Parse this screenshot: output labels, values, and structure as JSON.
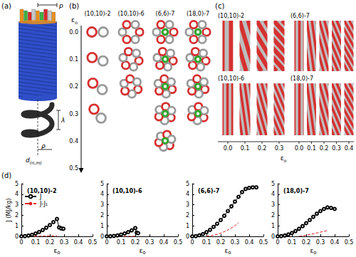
{
  "figure": {
    "panel_a": {
      "label": "(a)",
      "pitch": "p",
      "wavelength": "λ",
      "radius": "ρ",
      "diameter": {
        "symbol": "d",
        "subscript": "(n,m)"
      }
    },
    "panel_b": {
      "label": "(b)",
      "axis": {
        "symbol": "ε",
        "subscript": "o"
      },
      "ticks": [
        {
          "value": 0,
          "label": "0.0"
        },
        {
          "value": 0.1,
          "label": "0.1"
        },
        {
          "value": 0.2,
          "label": "0.2"
        },
        {
          "value": 0.3,
          "label": "0.3"
        },
        {
          "value": 0.4,
          "label": "0.4"
        },
        {
          "value": 0.5,
          "label": "0.5"
        }
      ],
      "columns": [
        {
          "name": "(10,10)-2",
          "max_strain": 0.3
        },
        {
          "name": "(10,10)-6",
          "max_strain": 0.2
        },
        {
          "name": "(6,6)-7",
          "max_strain": 0.4
        },
        {
          "name": "(18,0)-7",
          "max_strain": 0.3
        }
      ]
    },
    "panel_c": {
      "label": "(c)",
      "axis": {
        "symbol": "ε",
        "subscript": "o"
      },
      "groups": [
        {
          "structures": [
            "(10,10)-2",
            "(10,10)-6"
          ],
          "ticks": [
            {
              "value": 0,
              "label": "0.0"
            },
            {
              "value": 0.1,
              "label": "0.1"
            },
            {
              "value": 0.2,
              "label": "0.2"
            },
            {
              "value": 0.3,
              "label": "0.3"
            }
          ]
        },
        {
          "structures": [
            "(6,6)-7",
            "(18,0)-7"
          ],
          "ticks": [
            {
              "value": 0,
              "label": "0.0"
            },
            {
              "value": 0.1,
              "label": "0.1"
            },
            {
              "value": 0.2,
              "label": "0.2"
            },
            {
              "value": 0.3,
              "label": "0.3"
            },
            {
              "value": 0.4,
              "label": "0.4"
            }
          ]
        }
      ]
    },
    "panel_d": {
      "label": "(d)"
    }
  },
  "chart_data": [
    {
      "type": "line",
      "title": "(10,10)-2",
      "x_label": {
        "symbol": "ε",
        "subscript": "o"
      },
      "y_label": "J (MJ/kg)",
      "xlim": [
        0,
        0.5
      ],
      "xticks": [
        0,
        0.1,
        0.2,
        0.3,
        0.4,
        0.5
      ],
      "ylim": [
        0,
        5
      ],
      "yticks": [
        0,
        1,
        2,
        3,
        4,
        5
      ],
      "grid": false,
      "legend": "upper left",
      "series": [
        {
          "name": "J",
          "color": "#000000",
          "marker": "circle",
          "line_style": "solid",
          "x": [
            0,
            0.025,
            0.05,
            0.075,
            0.1,
            0.125,
            0.15,
            0.175,
            0.2,
            0.225,
            0.25,
            0.265,
            0.28,
            0.295
          ],
          "values": [
            0,
            0.02,
            0.07,
            0.15,
            0.27,
            0.42,
            0.6,
            0.82,
            1.07,
            1.35,
            1.65,
            0.85,
            0.75,
            0.72
          ]
        },
        {
          "name": "J-J₁",
          "color": "#e02020",
          "marker": "none",
          "line_style": "dashed",
          "x": [
            0,
            0.05,
            0.1,
            0.15,
            0.2,
            0.25
          ],
          "values": [
            0,
            0,
            0.01,
            0.02,
            0.04,
            0.06
          ]
        }
      ]
    },
    {
      "type": "line",
      "title": "(10,10)-6",
      "x_label": {
        "symbol": "ε",
        "subscript": "o"
      },
      "xlim": [
        0,
        0.5
      ],
      "xticks": [
        0,
        0.1,
        0.2,
        0.3,
        0.4,
        0.5
      ],
      "ylim": [
        0,
        5
      ],
      "yticks": [
        0,
        1,
        2,
        3,
        4,
        5
      ],
      "grid": false,
      "series": [
        {
          "name": "J",
          "color": "#000000",
          "marker": "circle",
          "line_style": "solid",
          "x": [
            0,
            0.025,
            0.05,
            0.075,
            0.1,
            0.125,
            0.15,
            0.175,
            0.2,
            0.21,
            0.22
          ],
          "values": [
            0,
            0.01,
            0.04,
            0.09,
            0.17,
            0.27,
            0.4,
            0.57,
            0.78,
            0.35,
            0.3
          ]
        },
        {
          "name": "J-J₁",
          "color": "#e02020",
          "marker": "none",
          "line_style": "dashed",
          "x": [
            0,
            0.1,
            0.2
          ],
          "values": [
            0,
            0,
            0.01
          ]
        }
      ]
    },
    {
      "type": "line",
      "title": "(6,6)-7",
      "x_label": {
        "symbol": "ε",
        "subscript": "o"
      },
      "xlim": [
        0,
        0.5
      ],
      "xticks": [
        0,
        0.1,
        0.2,
        0.3,
        0.4,
        0.5
      ],
      "ylim": [
        0,
        5
      ],
      "yticks": [
        0,
        1,
        2,
        3,
        4,
        5
      ],
      "grid": false,
      "series": [
        {
          "name": "J",
          "color": "#000000",
          "marker": "circle",
          "line_style": "solid",
          "x": [
            0,
            0.025,
            0.05,
            0.075,
            0.1,
            0.125,
            0.15,
            0.175,
            0.2,
            0.225,
            0.25,
            0.275,
            0.3,
            0.325,
            0.35,
            0.375,
            0.4,
            0.425,
            0.45
          ],
          "values": [
            0,
            0.02,
            0.1,
            0.22,
            0.4,
            0.62,
            0.9,
            1.2,
            1.55,
            1.95,
            2.4,
            2.85,
            3.3,
            3.75,
            4.2,
            4.5,
            4.6,
            4.65,
            4.65
          ]
        },
        {
          "name": "J-J₁",
          "color": "#e02020",
          "marker": "none",
          "line_style": "dashed",
          "x": [
            0.1,
            0.15,
            0.2,
            0.25,
            0.3,
            0.325
          ],
          "values": [
            0,
            0.1,
            0.3,
            0.6,
            1.0,
            1.3
          ]
        }
      ]
    },
    {
      "type": "line",
      "title": "(18,0)-7",
      "x_label": {
        "symbol": "ε",
        "subscript": "o"
      },
      "xlim": [
        0,
        0.5
      ],
      "xticks": [
        0,
        0.1,
        0.2,
        0.3,
        0.4,
        0.5
      ],
      "ylim": [
        0,
        5
      ],
      "yticks": [
        0,
        1,
        2,
        3,
        4,
        5
      ],
      "grid": false,
      "series": [
        {
          "name": "J",
          "color": "#000000",
          "marker": "circle",
          "line_style": "solid",
          "x": [
            0,
            0.025,
            0.05,
            0.075,
            0.1,
            0.125,
            0.15,
            0.175,
            0.2,
            0.225,
            0.25,
            0.275,
            0.3,
            0.325,
            0.35,
            0.375,
            0.4
          ],
          "values": [
            0,
            0.02,
            0.08,
            0.18,
            0.32,
            0.5,
            0.72,
            0.97,
            1.25,
            1.55,
            1.85,
            2.15,
            2.4,
            2.6,
            2.75,
            2.7,
            2.6
          ]
        },
        {
          "name": "J-J₁",
          "color": "#e02020",
          "marker": "none",
          "line_style": "dashed",
          "x": [
            0.15,
            0.2,
            0.25,
            0.3,
            0.35
          ],
          "values": [
            0,
            0.1,
            0.25,
            0.4,
            0.55
          ]
        }
      ]
    }
  ]
}
